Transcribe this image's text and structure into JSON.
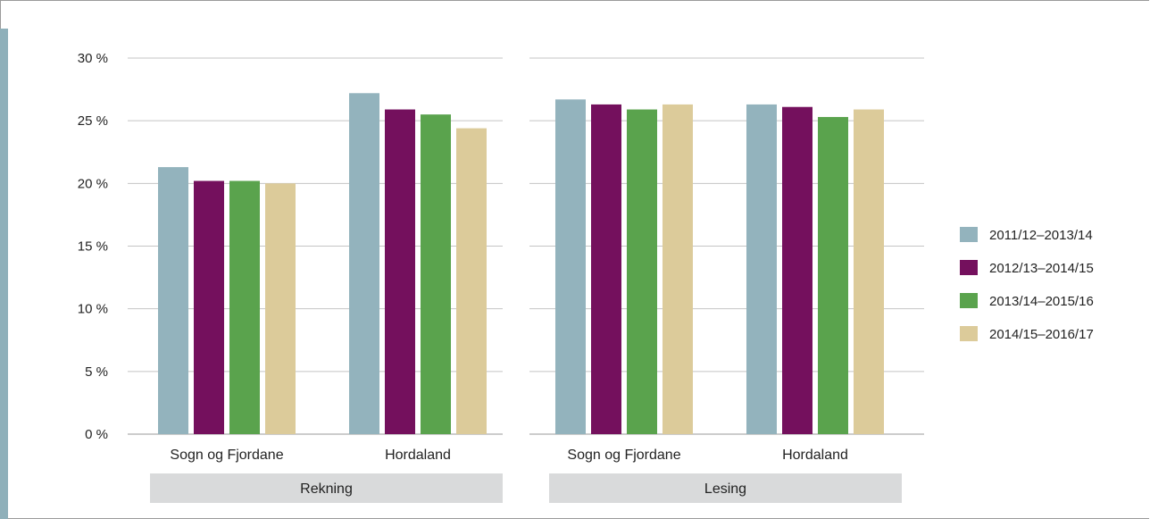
{
  "chart_data": {
    "type": "bar",
    "title": "",
    "xlabel": "",
    "ylabel": "",
    "ylim": [
      0,
      30
    ],
    "yticks": [
      0,
      5,
      10,
      15,
      20,
      25,
      30
    ],
    "ytick_labels": [
      "0 %",
      "5 %",
      "10 %",
      "15 %",
      "20 %",
      "25 %",
      "30 %"
    ],
    "grid": true,
    "legend_position": "right",
    "series_colors": [
      "#93b3bd",
      "#74105d",
      "#5aa34d",
      "#dccb9a"
    ],
    "groups": [
      {
        "label": "Rekning",
        "categories": [
          "Sogn og Fjordane",
          "Hordaland"
        ],
        "series": [
          {
            "name": "2011/12–2013/14",
            "values": [
              21.3,
              27.2
            ]
          },
          {
            "name": "2012/13–2014/15",
            "values": [
              20.2,
              25.9
            ]
          },
          {
            "name": "2013/14–2015/16",
            "values": [
              20.2,
              25.5
            ]
          },
          {
            "name": "2014/15–2016/17",
            "values": [
              20.0,
              24.4
            ]
          }
        ]
      },
      {
        "label": "Lesing",
        "categories": [
          "Sogn og Fjordane",
          "Hordaland"
        ],
        "series": [
          {
            "name": "2011/12–2013/14",
            "values": [
              26.7,
              26.3
            ]
          },
          {
            "name": "2012/13–2014/15",
            "values": [
              26.3,
              26.1
            ]
          },
          {
            "name": "2013/14–2015/16",
            "values": [
              25.9,
              25.3
            ]
          },
          {
            "name": "2014/15–2016/17",
            "values": [
              26.3,
              25.9
            ]
          }
        ]
      }
    ],
    "legend": [
      "2011/12–2013/14",
      "2012/13–2014/15",
      "2013/14–2015/16",
      "2014/15–2016/17"
    ]
  }
}
